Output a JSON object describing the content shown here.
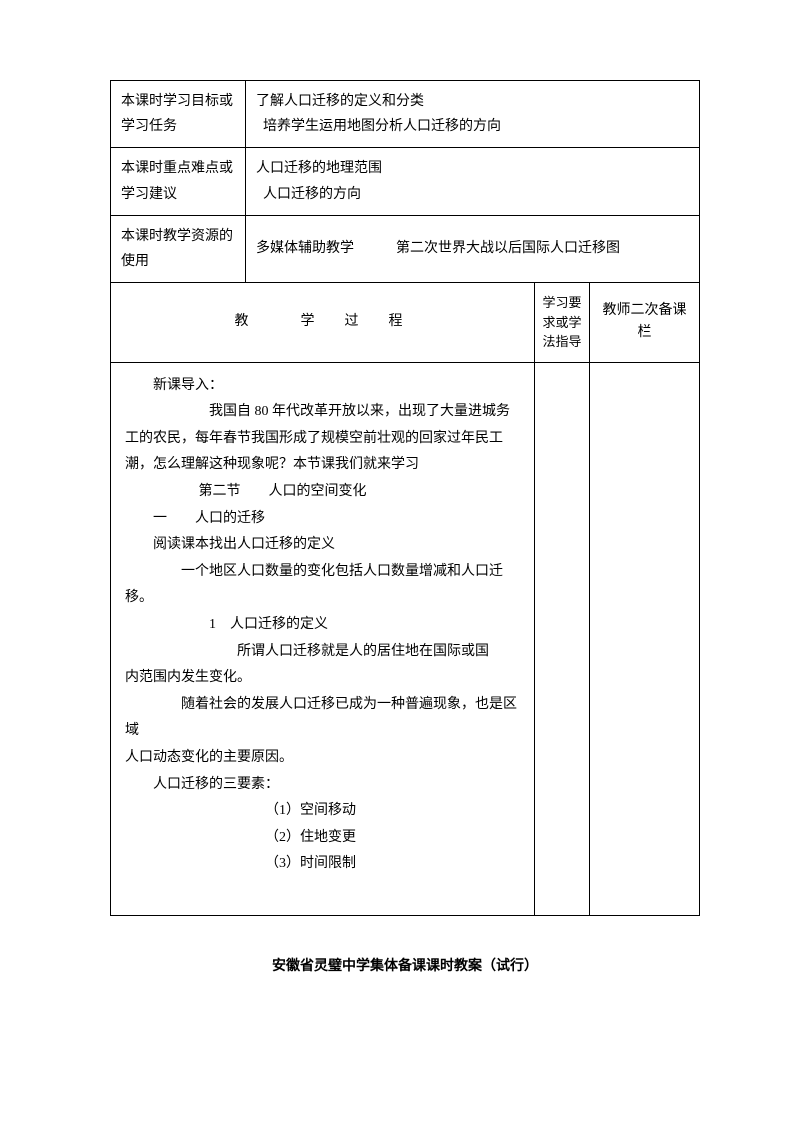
{
  "rows": {
    "objectives": {
      "label": "本课时学习目标或学习任务",
      "line1": "了解人口迁移的定义和分类",
      "line2": "培养学生运用地图分析人口迁移的方向"
    },
    "keypoints": {
      "label": "本课时重点难点或学习建议",
      "line1": "人口迁移的地理范围",
      "line2": "人口迁移的方向"
    },
    "resources": {
      "label": "本课时教学资源的使用",
      "content": "多媒体辅助教学　　　第二次世界大战以后国际人口迁移图"
    }
  },
  "processHeader": {
    "col1": "教　　学　过　程",
    "col2": "学习要求或学法指导",
    "col3": "教师二次备课栏"
  },
  "body": {
    "l1": "新课导入：",
    "l2": "我国自 80 年代改革开放以来，出现了大量进城务",
    "l3": "工的农民，每年春节我国形成了规模空前壮观的回家过年民工",
    "l4": "潮，怎么理解这种现象呢？本节课我们就来学习",
    "l5": "第二节　　人口的空间变化",
    "l6": "一　　人口的迁移",
    "l7": "阅读课本找出人口迁移的定义",
    "l8": "一个地区人口数量的变化包括人口数量增减和人口迁移。",
    "l9": "1　人口迁移的定义",
    "l10": "所谓人口迁移就是人的居住地在国际或国",
    "l11": "内范围内发生变化。",
    "l12": "随着社会的发展人口迁移已成为一种普遍现象，也是区域",
    "l13": "人口动态变化的主要原因。",
    "l14": "人口迁移的三要素：",
    "l15": "（1）空间移动",
    "l16": "（2）住地变更",
    "l17": "（3）时间限制"
  },
  "footer": "安徽省灵璧中学集体备课课时教案（试行）"
}
